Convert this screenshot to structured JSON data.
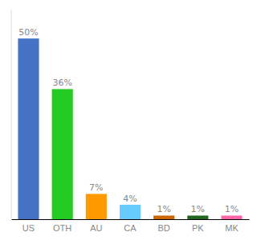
{
  "chart_data": {
    "type": "bar",
    "categories": [
      "US",
      "OTH",
      "AU",
      "CA",
      "BD",
      "PK",
      "MK"
    ],
    "values": [
      50,
      36,
      7,
      4,
      1,
      1,
      1
    ],
    "value_labels": [
      "50%",
      "36%",
      "7%",
      "4%",
      "1%",
      "1%",
      "1%"
    ],
    "colors": [
      "#4472c4",
      "#22cc22",
      "#ff9900",
      "#66ccff",
      "#cc6600",
      "#226622",
      "#ff66aa"
    ],
    "ylim": [
      0,
      58
    ],
    "data_labels": true,
    "tick_labels": "x"
  }
}
